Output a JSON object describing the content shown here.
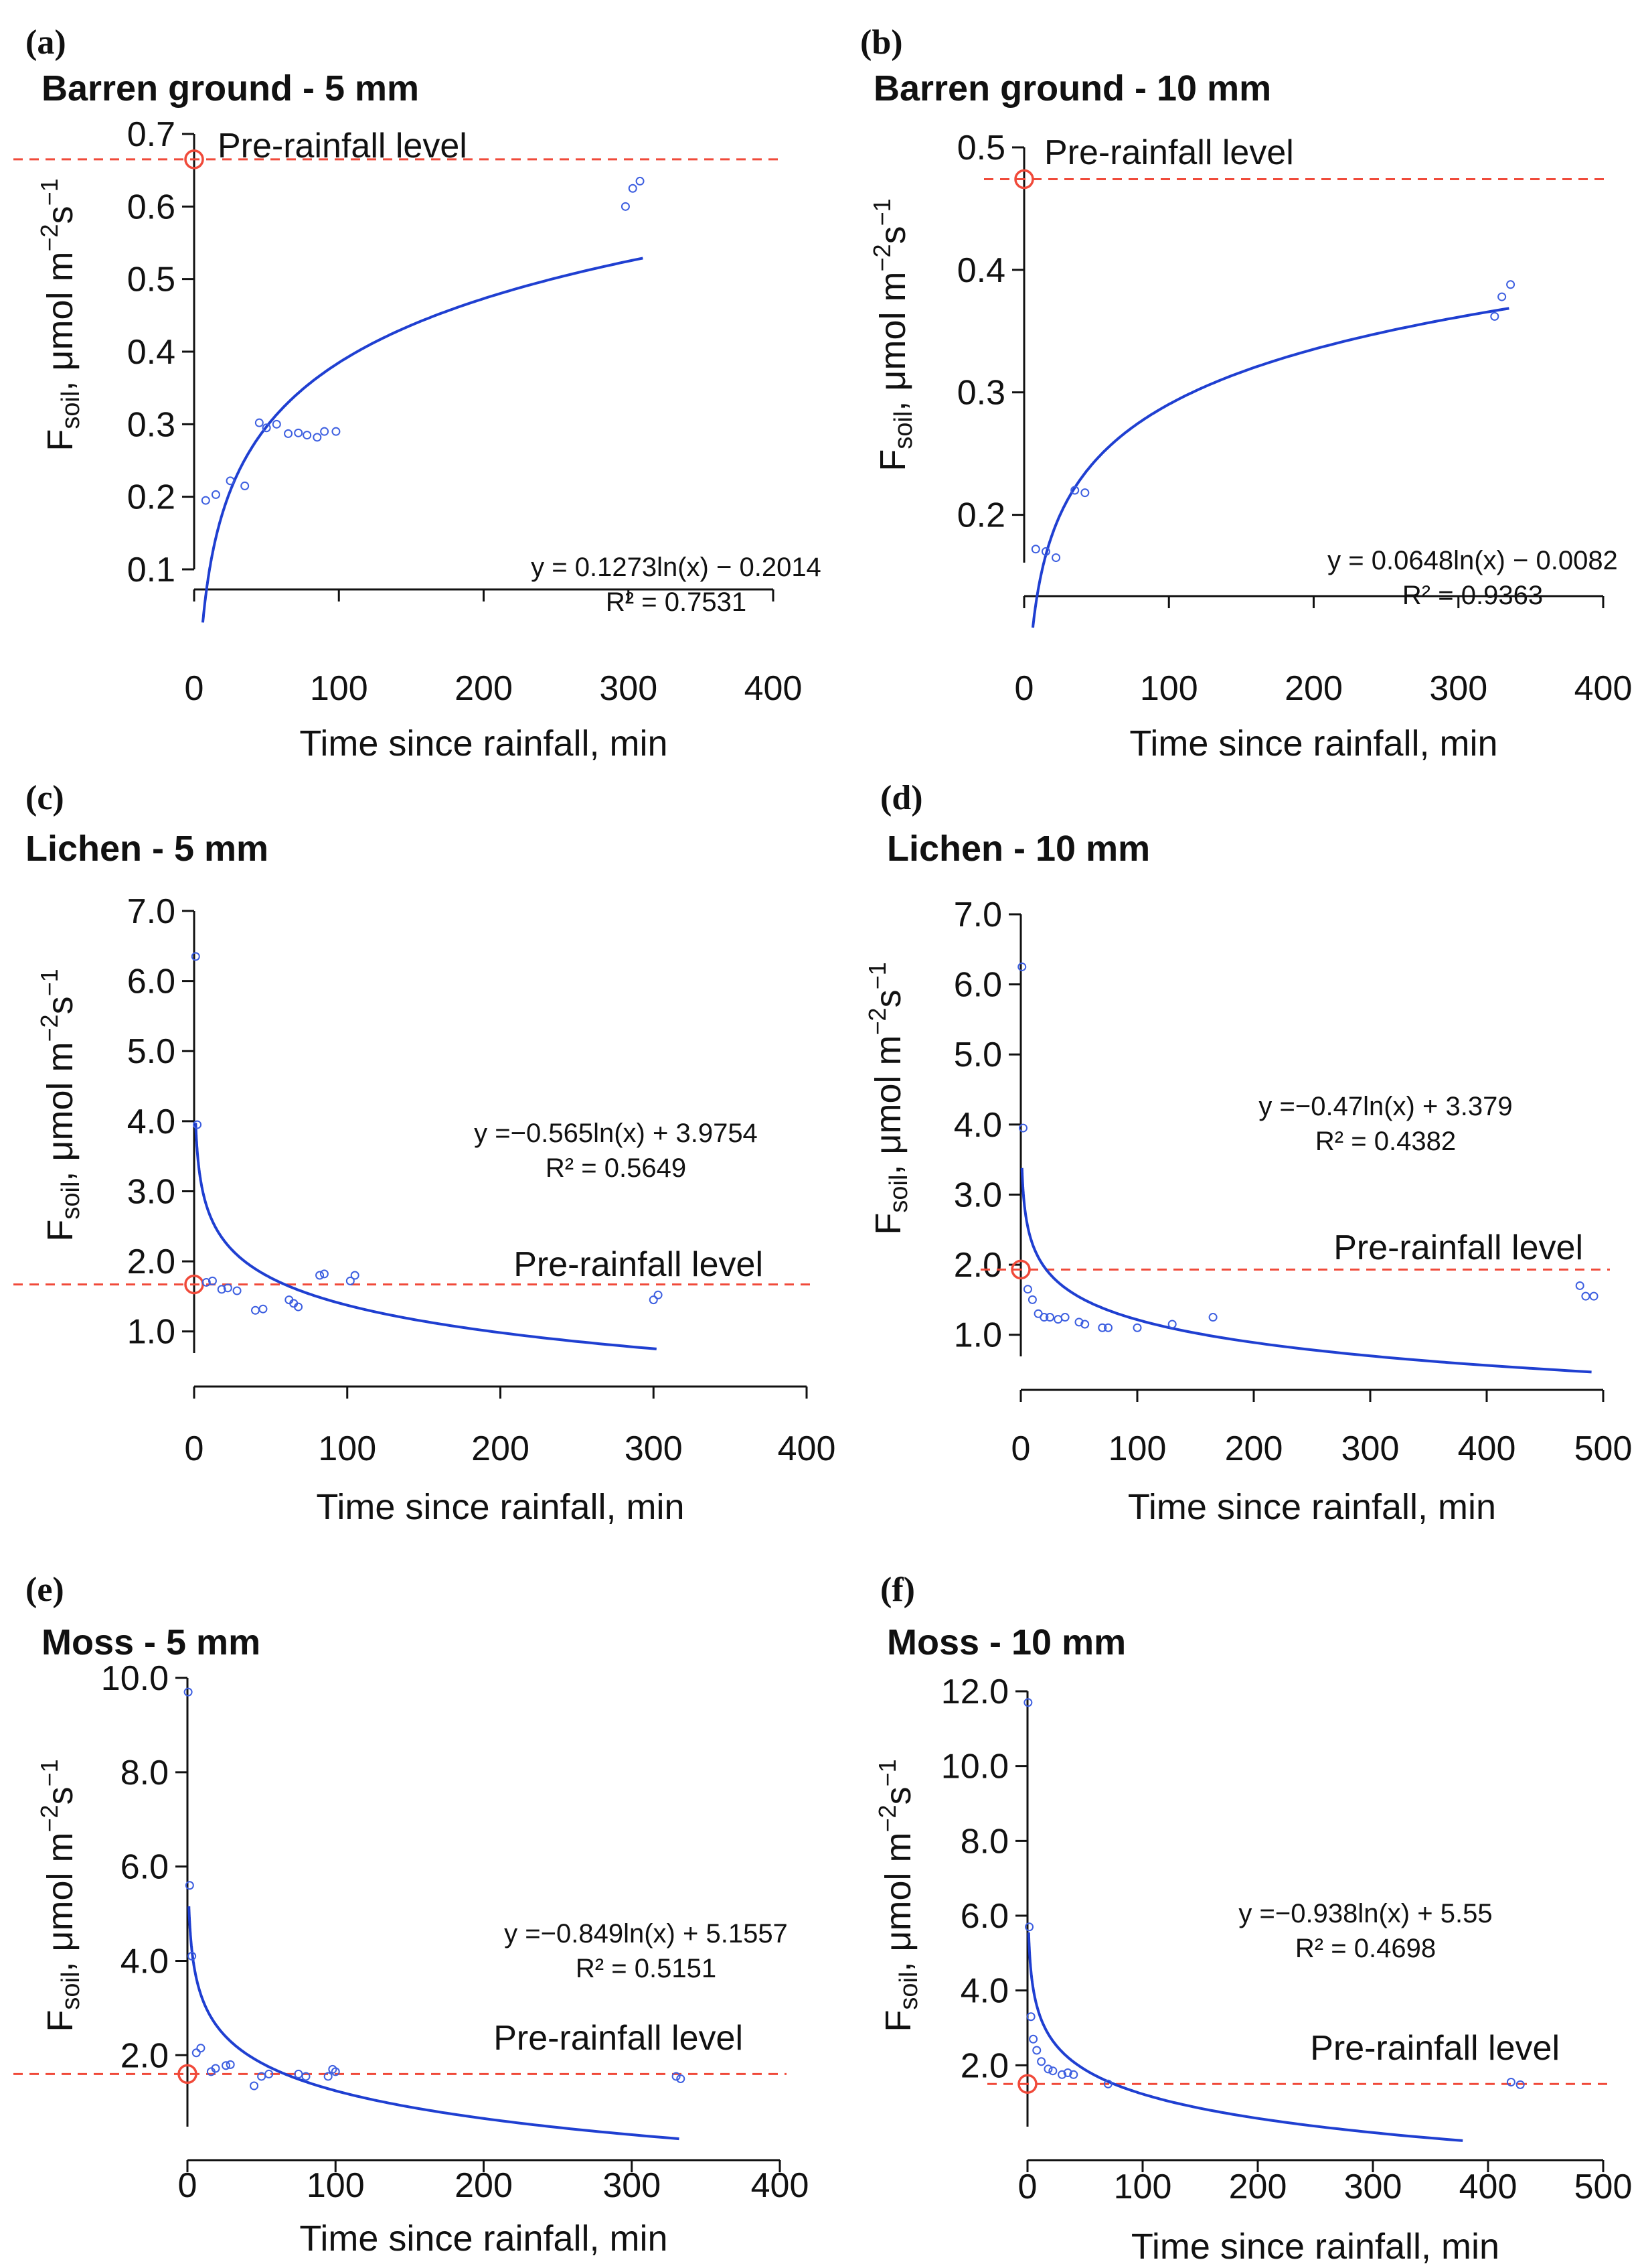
{
  "chart_data": [
    {
      "id": "a",
      "type": "scatter",
      "letter": "(a)",
      "title": "Barren ground - 5 mm",
      "xlabel": "Time since rainfall, min",
      "ylabel_main": "F",
      "ylabel_sub": "soil",
      "ylabel_unit": ", μmol  m",
      "ylabel_sup1": "−2",
      "ylabel_s": "s",
      "ylabel_sup2": "−1",
      "xlim": [
        0,
        400
      ],
      "ylim": [
        0.1,
        0.7
      ],
      "xticks": [
        0,
        100,
        200,
        300,
        400
      ],
      "xtick_labels": [
        "0",
        "100",
        "200",
        "300",
        "400"
      ],
      "yticks": [
        0.1,
        0.2,
        0.3,
        0.4,
        0.5,
        0.6,
        0.7
      ],
      "ytick_labels": [
        "0.1",
        "0.2",
        "0.3",
        "0.4",
        "0.5",
        "0.6",
        "0.7"
      ],
      "points": [
        [
          8,
          0.195
        ],
        [
          15,
          0.203
        ],
        [
          25,
          0.222
        ],
        [
          35,
          0.215
        ],
        [
          45,
          0.302
        ],
        [
          50,
          0.295
        ],
        [
          57,
          0.3
        ],
        [
          65,
          0.287
        ],
        [
          72,
          0.288
        ],
        [
          78,
          0.285
        ],
        [
          85,
          0.282
        ],
        [
          90,
          0.29
        ],
        [
          98,
          0.29
        ],
        [
          298,
          0.6
        ],
        [
          303,
          0.625
        ],
        [
          308,
          0.635
        ]
      ],
      "fit": {
        "a": 0.1273,
        "b": -0.2014,
        "x_start": 6,
        "x_end": 310
      },
      "equation": "y = 0.1273ln(x) − 0.2014",
      "r2": "R² = 0.7531",
      "pre_rainfall": {
        "value": 0.665,
        "label": "Pre-rainfall level"
      }
    },
    {
      "id": "b",
      "type": "scatter",
      "letter": "(b)",
      "title": "Barren ground - 10 mm",
      "xlabel": "Time since rainfall, min",
      "ylabel_main": "F",
      "ylabel_sub": "soil",
      "ylabel_unit": ", μmol  m",
      "ylabel_sup1": "−2",
      "ylabel_s": "s",
      "ylabel_sup2": "−1",
      "xlim": [
        0,
        400
      ],
      "ylim": [
        0.15,
        0.5
      ],
      "xticks": [
        0,
        100,
        200,
        300,
        400
      ],
      "xtick_labels": [
        "0",
        "100",
        "200",
        "300",
        "400"
      ],
      "yticks": [
        0.2,
        0.3,
        0.4,
        0.5
      ],
      "ytick_labels": [
        "0.2",
        "0.3",
        "0.4",
        "0.5"
      ],
      "points": [
        [
          8,
          0.172
        ],
        [
          15,
          0.17
        ],
        [
          22,
          0.165
        ],
        [
          35,
          0.22
        ],
        [
          42,
          0.218
        ],
        [
          325,
          0.362
        ],
        [
          330,
          0.378
        ],
        [
          336,
          0.388
        ]
      ],
      "fit": {
        "a": 0.0648,
        "b": -0.0082,
        "x_start": 6,
        "x_end": 335
      },
      "equation": "y = 0.0648ln(x) − 0.0082",
      "r2": "R² = 0.9363",
      "pre_rainfall": {
        "value": 0.474,
        "label": "Pre-rainfall level"
      }
    },
    {
      "id": "c",
      "type": "scatter",
      "letter": "(c)",
      "title": "Lichen - 5 mm",
      "xlabel": "Time since rainfall, min",
      "ylabel_main": "F",
      "ylabel_sub": "soil",
      "ylabel_unit": ", μmol  m",
      "ylabel_sup1": "−2",
      "ylabel_s": "s",
      "ylabel_sup2": "−1",
      "xlim": [
        0,
        400
      ],
      "ylim": [
        0.5,
        7.0
      ],
      "xticks": [
        0,
        100,
        200,
        300,
        400
      ],
      "xtick_labels": [
        "0",
        "100",
        "200",
        "300",
        "400"
      ],
      "yticks": [
        1,
        2,
        3,
        4,
        5,
        6,
        7
      ],
      "ytick_labels": [
        "1.0",
        "2.0",
        "3.0",
        "4.0",
        "5.0",
        "6.0",
        "7.0"
      ],
      "points": [
        [
          1,
          6.35
        ],
        [
          2,
          3.95
        ],
        [
          8,
          1.7
        ],
        [
          12,
          1.72
        ],
        [
          18,
          1.6
        ],
        [
          22,
          1.62
        ],
        [
          28,
          1.58
        ],
        [
          40,
          1.3
        ],
        [
          45,
          1.32
        ],
        [
          62,
          1.45
        ],
        [
          65,
          1.4
        ],
        [
          68,
          1.35
        ],
        [
          82,
          1.8
        ],
        [
          85,
          1.82
        ],
        [
          102,
          1.72
        ],
        [
          105,
          1.8
        ],
        [
          300,
          1.45
        ],
        [
          303,
          1.52
        ]
      ],
      "fit": {
        "a": -0.565,
        "b": 3.9754,
        "x_start": 1,
        "x_end": 302
      },
      "equation": "y =−0.565ln(x) + 3.9754",
      "r2": "R² = 0.5649",
      "pre_rainfall": {
        "value": 1.67,
        "label": "Pre-rainfall level"
      }
    },
    {
      "id": "d",
      "type": "scatter",
      "letter": "(d)",
      "title": "Lichen - 10 mm",
      "xlabel": "Time since rainfall, min",
      "ylabel_main": "F",
      "ylabel_sub": "soil",
      "ylabel_unit": ", μmol  m",
      "ylabel_sup1": "−2",
      "ylabel_s": "s",
      "ylabel_sup2": "−1",
      "xlim": [
        0,
        500
      ],
      "ylim": [
        0.5,
        7.0
      ],
      "xticks": [
        0,
        100,
        200,
        300,
        400,
        500
      ],
      "xtick_labels": [
        "0",
        "100",
        "200",
        "300",
        "400",
        "500"
      ],
      "yticks": [
        1,
        2,
        3,
        4,
        5,
        6,
        7
      ],
      "ytick_labels": [
        "1.0",
        "2.0",
        "3.0",
        "4.0",
        "5.0",
        "6.0",
        "7.0"
      ],
      "points": [
        [
          1,
          6.25
        ],
        [
          2,
          3.95
        ],
        [
          6,
          1.65
        ],
        [
          10,
          1.5
        ],
        [
          15,
          1.3
        ],
        [
          20,
          1.25
        ],
        [
          25,
          1.25
        ],
        [
          32,
          1.22
        ],
        [
          38,
          1.25
        ],
        [
          50,
          1.18
        ],
        [
          55,
          1.15
        ],
        [
          70,
          1.1
        ],
        [
          75,
          1.1
        ],
        [
          100,
          1.1
        ],
        [
          130,
          1.15
        ],
        [
          165,
          1.25
        ],
        [
          480,
          1.7
        ],
        [
          485,
          1.55
        ],
        [
          492,
          1.55
        ]
      ],
      "fit": {
        "a": -0.47,
        "b": 3.379,
        "x_start": 1,
        "x_end": 490
      },
      "equation": "y =−0.47ln(x) + 3.379",
      "r2": "R² = 0.4382",
      "pre_rainfall": {
        "value": 1.93,
        "label": "Pre-rainfall level"
      }
    },
    {
      "id": "e",
      "type": "scatter",
      "letter": "(e)",
      "title": "Moss - 5 mm",
      "xlabel": "Time since rainfall, min",
      "ylabel_main": "F",
      "ylabel_sub": "soil",
      "ylabel_unit": ", μmol  m",
      "ylabel_sup1": "−2",
      "ylabel_s": "s",
      "ylabel_sup2": "−1",
      "xlim": [
        0,
        400
      ],
      "ylim": [
        0.2,
        10.0
      ],
      "xticks": [
        0,
        100,
        200,
        300,
        400
      ],
      "xtick_labels": [
        "0",
        "100",
        "200",
        "300",
        "400"
      ],
      "yticks": [
        2,
        4,
        6,
        8,
        10
      ],
      "ytick_labels": [
        "2.0",
        "4.0",
        "6.0",
        "8.0",
        "10.0"
      ],
      "points": [
        [
          0.5,
          9.7
        ],
        [
          1.5,
          5.6
        ],
        [
          3,
          4.1
        ],
        [
          6,
          2.05
        ],
        [
          9,
          2.15
        ],
        [
          16,
          1.65
        ],
        [
          19,
          1.72
        ],
        [
          26,
          1.78
        ],
        [
          29,
          1.8
        ],
        [
          45,
          1.35
        ],
        [
          50,
          1.55
        ],
        [
          55,
          1.6
        ],
        [
          75,
          1.6
        ],
        [
          80,
          1.55
        ],
        [
          95,
          1.55
        ],
        [
          98,
          1.7
        ],
        [
          100,
          1.65
        ],
        [
          330,
          1.55
        ],
        [
          333,
          1.5
        ]
      ],
      "fit": {
        "a": -0.849,
        "b": 5.1557,
        "x_start": 1,
        "x_end": 332
      },
      "equation": "y =−0.849ln(x) + 5.1557",
      "r2": "R² = 0.5151",
      "pre_rainfall": {
        "value": 1.6,
        "label": "Pre-rainfall level"
      }
    },
    {
      "id": "f",
      "type": "scatter",
      "letter": "(f)",
      "title": "Moss - 10 mm",
      "xlabel": "Time since rainfall, min",
      "ylabel_main": "F",
      "ylabel_sub": "soil",
      "ylabel_unit": ", μmol  m",
      "ylabel_sup1": "−2",
      "ylabel_s": "s",
      "ylabel_sup2": "−1",
      "xlim": [
        0,
        500
      ],
      "ylim": [
        0,
        12.0
      ],
      "xticks": [
        0,
        100,
        200,
        300,
        400,
        500
      ],
      "xtick_labels": [
        "0",
        "100",
        "200",
        "300",
        "400",
        "500"
      ],
      "yticks": [
        2,
        4,
        6,
        8,
        10,
        12
      ],
      "ytick_labels": [
        "2.0",
        "4.0",
        "6.0",
        "8.0",
        "10.0",
        "12.0"
      ],
      "points": [
        [
          0.5,
          11.7
        ],
        [
          1.5,
          5.7
        ],
        [
          3,
          3.3
        ],
        [
          5,
          2.7
        ],
        [
          8,
          2.4
        ],
        [
          12,
          2.1
        ],
        [
          18,
          1.9
        ],
        [
          22,
          1.85
        ],
        [
          30,
          1.75
        ],
        [
          35,
          1.8
        ],
        [
          40,
          1.75
        ],
        [
          70,
          1.5
        ],
        [
          420,
          1.55
        ],
        [
          428,
          1.48
        ]
      ],
      "fit": {
        "a": -0.938,
        "b": 5.55,
        "x_start": 1,
        "x_end": 378
      },
      "equation": "y =−0.938ln(x) + 5.55",
      "r2": "R² = 0.4698",
      "pre_rainfall": {
        "value": 1.5,
        "label": "Pre-rainfall level"
      }
    }
  ],
  "colors": {
    "fit_line": "#1f3fd1",
    "points": "#3c5ee0",
    "pre_rainfall_line": "#f04a3a",
    "pre_rainfall_marker": "#f04a3a",
    "axis": "#111111"
  }
}
